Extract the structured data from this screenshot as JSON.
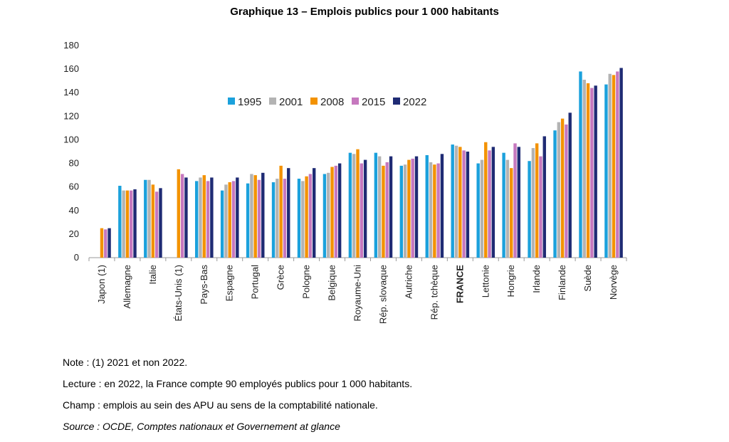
{
  "chart_data": {
    "type": "bar",
    "title": "Graphique 13 – Emplois publics pour 1 000 habitants",
    "categories": [
      "Japon (1)",
      "Allemagne",
      "Italie",
      "États-Unis (1)",
      "Pays-Bas",
      "Espagne",
      "Portugal",
      "Grèce",
      "Pologne",
      "Belgique",
      "Royaume-Uni",
      "Rép. slovaque",
      "Autriche",
      "Rép. tchèque",
      "FRANCE",
      "Lettonie",
      "Hongrie",
      "Irlande",
      "Finlande",
      "Suède",
      "Norvège"
    ],
    "highlight_category": "FRANCE",
    "highlight_color": "#F39200",
    "series": [
      {
        "name": "1995",
        "color": "#1BA1DC",
        "values": [
          null,
          61,
          66,
          null,
          65,
          57,
          63,
          64,
          67,
          71,
          89,
          89,
          78,
          87,
          96,
          80,
          89,
          82,
          108,
          158,
          147
        ]
      },
      {
        "name": "2001",
        "color": "#B3B3B3",
        "values": [
          null,
          57,
          66,
          null,
          68,
          62,
          71,
          67,
          65,
          72,
          88,
          86,
          79,
          81,
          95,
          83,
          83,
          93,
          115,
          151,
          156
        ]
      },
      {
        "name": "2008",
        "color": "#F39200",
        "values": [
          25,
          57,
          62,
          75,
          70,
          64,
          70,
          78,
          69,
          77,
          92,
          78,
          83,
          79,
          94,
          98,
          76,
          97,
          118,
          148,
          155
        ]
      },
      {
        "name": "2015",
        "color": "#C678BE",
        "values": [
          24,
          57,
          56,
          71,
          65,
          65,
          66,
          67,
          71,
          78,
          80,
          81,
          84,
          80,
          91,
          91,
          97,
          86,
          113,
          144,
          158
        ]
      },
      {
        "name": "2022",
        "color": "#1F2B74",
        "values": [
          25,
          58,
          59,
          68,
          68,
          68,
          72,
          76,
          76,
          80,
          83,
          86,
          86,
          88,
          90,
          94,
          94,
          103,
          123,
          146,
          161
        ]
      }
    ],
    "ylim": [
      0,
      180
    ],
    "yticks": [
      0,
      20,
      40,
      60,
      80,
      100,
      120,
      140,
      160,
      180
    ],
    "grid": false,
    "legend_position": "top-center"
  },
  "notes": {
    "note": "Note : (1) 2021 et non 2022.",
    "lecture": "Lecture : en 2022, la France compte 90 employés publics pour 1 000 habitants.",
    "champ": "Champ : emplois au sein des APU au sens de la comptabilité nationale.",
    "source": "Source : OCDE, Comptes nationaux et Governement at glance"
  }
}
